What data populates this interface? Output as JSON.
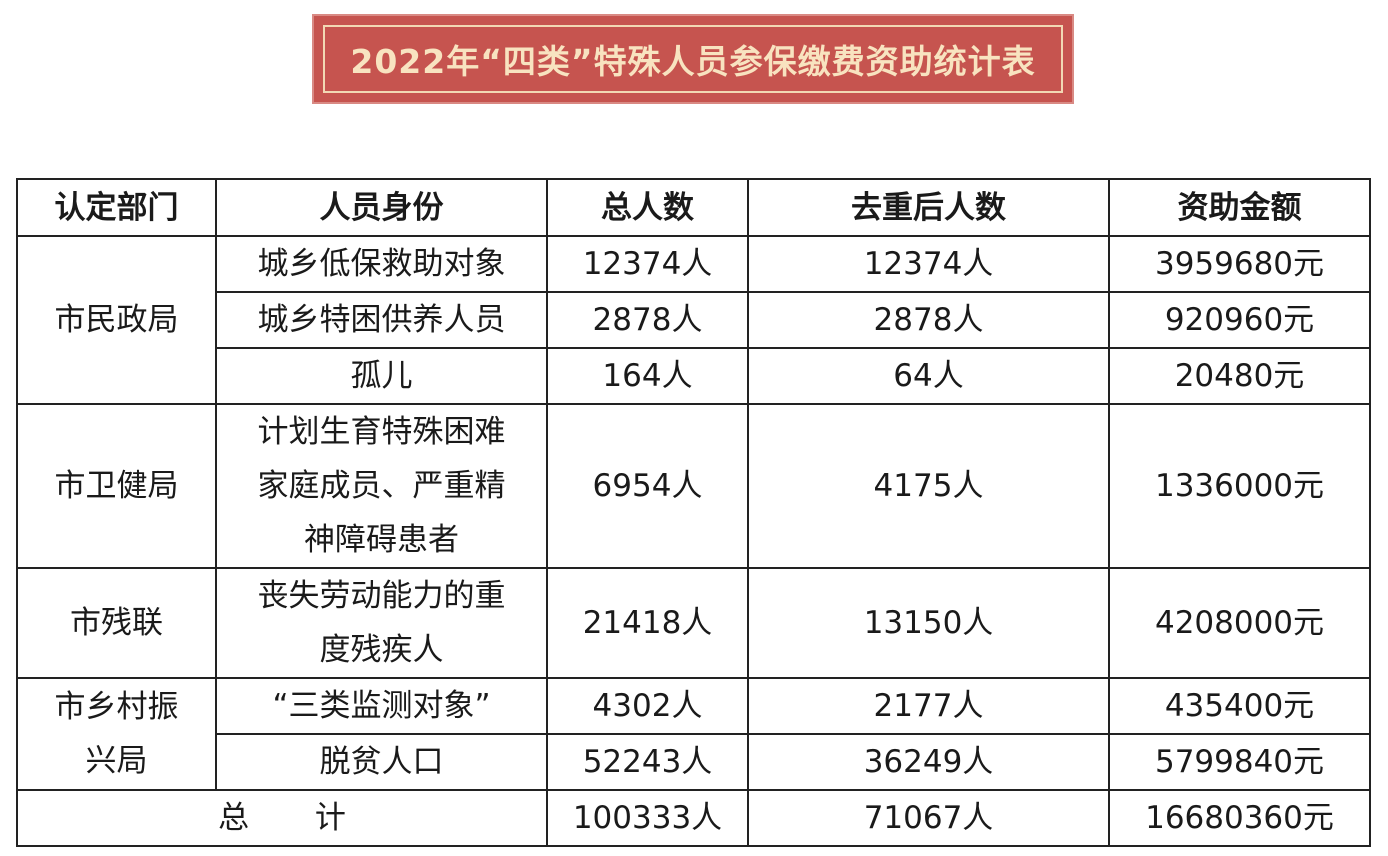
{
  "title": "2022年“四类”特殊人员参保缴费资助统计表",
  "headers": [
    "认定部门",
    "人员身份",
    "总人数",
    "去重后人数",
    "资助金额"
  ],
  "groups": [
    {
      "department": "市民政局",
      "rows": [
        {
          "identity": [
            "城乡低保救助对象"
          ],
          "total": "12374人",
          "dedup": "12374人",
          "amount": "3959680元"
        },
        {
          "identity": [
            "城乡特困供养人员"
          ],
          "total": "2878人",
          "dedup": "2878人",
          "amount": "920960元"
        },
        {
          "identity": [
            "孤儿"
          ],
          "total": "164人",
          "dedup": "64人",
          "amount": "20480元"
        }
      ]
    },
    {
      "department": "市卫健局",
      "rows": [
        {
          "identity": [
            "计划生育特殊困难",
            "家庭成员、严重精",
            "神障碍患者"
          ],
          "total": "6954人",
          "dedup": "4175人",
          "amount": "1336000元"
        }
      ]
    },
    {
      "department": "市残联",
      "rows": [
        {
          "identity": [
            "丧失劳动能力的重",
            "度残疾人"
          ],
          "total": "21418人",
          "dedup": "13150人",
          "amount": "4208000元"
        }
      ]
    },
    {
      "department_lines": [
        "市乡村振",
        "兴局"
      ],
      "rows": [
        {
          "identity": [
            "“三类监测对象”"
          ],
          "total": "4302人",
          "dedup": "2177人",
          "amount": "435400元"
        },
        {
          "identity": [
            "脱贫人口"
          ],
          "total": "52243人",
          "dedup": "36249人",
          "amount": "5799840元"
        }
      ]
    }
  ],
  "summary": {
    "label": "总 计",
    "total": "100333人",
    "dedup": "71067人",
    "amount": "16680360元"
  },
  "colors": {
    "title_bg": "#c6544f",
    "title_text": "#f8e3c0",
    "border": "#222222"
  }
}
